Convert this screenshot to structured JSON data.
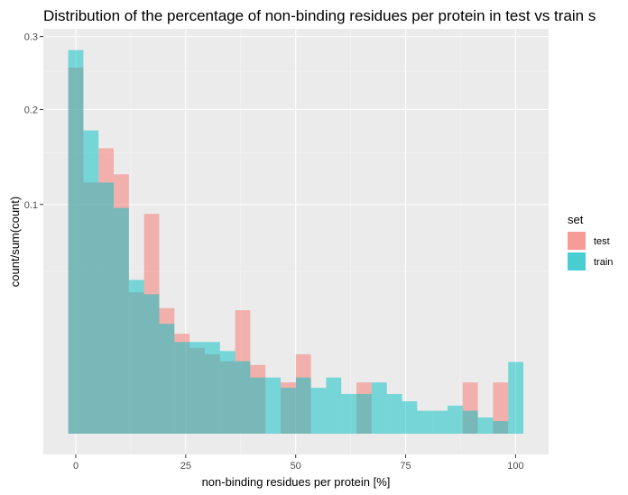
{
  "chart_data": {
    "type": "bar",
    "title": "Distribution of the percentage of non-binding residues per protein in test vs train s",
    "xlabel": "non-binding residues per protein [%]",
    "ylabel": "count/sum(count)",
    "x_ticks": [
      "0",
      "25",
      "50",
      "75",
      "100"
    ],
    "y_ticks": [
      "0.1",
      "0.2",
      "0.3"
    ],
    "y_scale": "sqrt",
    "xlim": [
      -2.7,
      102.7
    ],
    "ylim": [
      0,
      0.3
    ],
    "grid": true,
    "legend_title": "set",
    "legend_position": "right",
    "bin_width": 3.45,
    "bin_centers": [
      0,
      3.45,
      6.9,
      10.35,
      13.8,
      17.25,
      20.7,
      24.15,
      27.6,
      31.05,
      34.5,
      37.95,
      41.4,
      44.85,
      48.3,
      51.75,
      55.2,
      58.65,
      62.1,
      65.55,
      69.0,
      72.45,
      75.9,
      79.35,
      82.8,
      86.25,
      89.7,
      93.15,
      96.6,
      100.05
    ],
    "series": [
      {
        "name": "test",
        "color": "#F8766D",
        "values": [
          0.255,
          0.12,
          0.155,
          0.128,
          0.038,
          0.092,
          0.03,
          0.019,
          0.014,
          0.012,
          0.01,
          0.029,
          0.009,
          0.0,
          0.005,
          0.012,
          0.0,
          0.0,
          0.0,
          0.005,
          0.0,
          0.0,
          0.0,
          0.0,
          0.0,
          0.0,
          0.005,
          0.0,
          0.005,
          0.0
        ]
      },
      {
        "name": "train",
        "color": "#00BFC4",
        "values": [
          0.28,
          0.175,
          0.12,
          0.097,
          0.045,
          0.037,
          0.023,
          0.016,
          0.016,
          0.016,
          0.013,
          0.01,
          0.006,
          0.006,
          0.004,
          0.006,
          0.004,
          0.006,
          0.003,
          0.003,
          0.005,
          0.003,
          0.002,
          0.001,
          0.001,
          0.0015,
          0.001,
          0.0005,
          0.0003,
          0.0098
        ]
      }
    ]
  }
}
